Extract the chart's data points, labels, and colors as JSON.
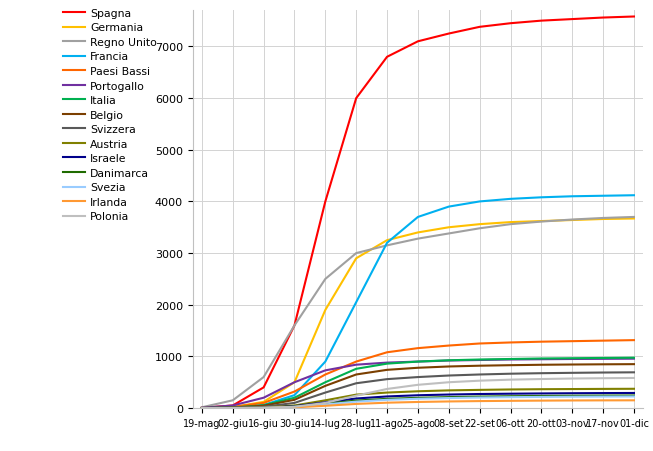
{
  "ylim": [
    0,
    7700
  ],
  "yticks": [
    0,
    1000,
    2000,
    3000,
    4000,
    5000,
    6000,
    7000
  ],
  "background_color": "#ffffff",
  "grid_color": "#d3d3d3",
  "dates": [
    "19-mag",
    "02-giu",
    "16-giu",
    "30-giu",
    "14-lug",
    "28-lug",
    "11-ago",
    "25-ago",
    "08-set",
    "22-set",
    "06-ott",
    "20-ott",
    "03-nov",
    "17-nov",
    "01-dic"
  ],
  "series": [
    {
      "name": "Spagna",
      "color": "#FF0000",
      "values": [
        5,
        50,
        400,
        1600,
        4000,
        6000,
        6800,
        7100,
        7250,
        7380,
        7450,
        7500,
        7530,
        7560,
        7580
      ]
    },
    {
      "name": "Germania",
      "color": "#FFC000",
      "values": [
        2,
        20,
        120,
        500,
        1900,
        2900,
        3250,
        3400,
        3500,
        3560,
        3600,
        3620,
        3640,
        3660,
        3670
      ]
    },
    {
      "name": "Regno Unito",
      "color": "#A0A0A0",
      "values": [
        15,
        150,
        600,
        1600,
        2500,
        3000,
        3150,
        3280,
        3380,
        3480,
        3560,
        3610,
        3650,
        3680,
        3700
      ]
    },
    {
      "name": "Francia",
      "color": "#00B0F0",
      "values": [
        1,
        10,
        60,
        250,
        900,
        2050,
        3200,
        3700,
        3900,
        4000,
        4050,
        4080,
        4100,
        4110,
        4120
      ]
    },
    {
      "name": "Paesi Bassi",
      "color": "#FF6600",
      "values": [
        2,
        20,
        100,
        320,
        650,
        900,
        1080,
        1160,
        1210,
        1250,
        1270,
        1285,
        1295,
        1305,
        1315
      ]
    },
    {
      "name": "Portogallo",
      "color": "#7030A0",
      "values": [
        5,
        50,
        200,
        500,
        730,
        840,
        880,
        900,
        920,
        930,
        940,
        945,
        950,
        953,
        956
      ]
    },
    {
      "name": "Italia",
      "color": "#00B050",
      "values": [
        1,
        10,
        55,
        200,
        500,
        760,
        860,
        900,
        925,
        940,
        950,
        960,
        965,
        970,
        975
      ]
    },
    {
      "name": "Belgio",
      "color": "#7B3F00",
      "values": [
        1,
        8,
        45,
        160,
        430,
        650,
        740,
        780,
        805,
        820,
        830,
        838,
        843,
        847,
        850
      ]
    },
    {
      "name": "Svizzera",
      "color": "#595959",
      "values": [
        0,
        5,
        25,
        100,
        300,
        480,
        560,
        600,
        630,
        650,
        665,
        675,
        682,
        688,
        692
      ]
    },
    {
      "name": "Austria",
      "color": "#808000",
      "values": [
        0,
        3,
        12,
        50,
        150,
        260,
        300,
        325,
        342,
        352,
        360,
        365,
        368,
        371,
        373
      ]
    },
    {
      "name": "Israele",
      "color": "#00008B",
      "values": [
        0,
        2,
        8,
        35,
        110,
        185,
        225,
        248,
        262,
        272,
        278,
        283,
        287,
        290,
        292
      ]
    },
    {
      "name": "Danimarca",
      "color": "#1F6B00",
      "values": [
        0,
        1,
        8,
        28,
        85,
        145,
        178,
        198,
        212,
        222,
        229,
        234,
        238,
        241,
        243
      ]
    },
    {
      "name": "Svezia",
      "color": "#99CCFF",
      "values": [
        0,
        1,
        6,
        22,
        70,
        125,
        160,
        180,
        194,
        204,
        211,
        216,
        220,
        223,
        225
      ]
    },
    {
      "name": "Irlanda",
      "color": "#FF9933",
      "values": [
        0,
        1,
        4,
        14,
        44,
        80,
        104,
        118,
        128,
        135,
        140,
        144,
        147,
        149,
        150
      ]
    },
    {
      "name": "Polonia",
      "color": "#BFBFBF",
      "values": [
        0,
        1,
        4,
        25,
        100,
        240,
        370,
        450,
        500,
        530,
        550,
        562,
        572,
        578,
        583
      ]
    }
  ]
}
